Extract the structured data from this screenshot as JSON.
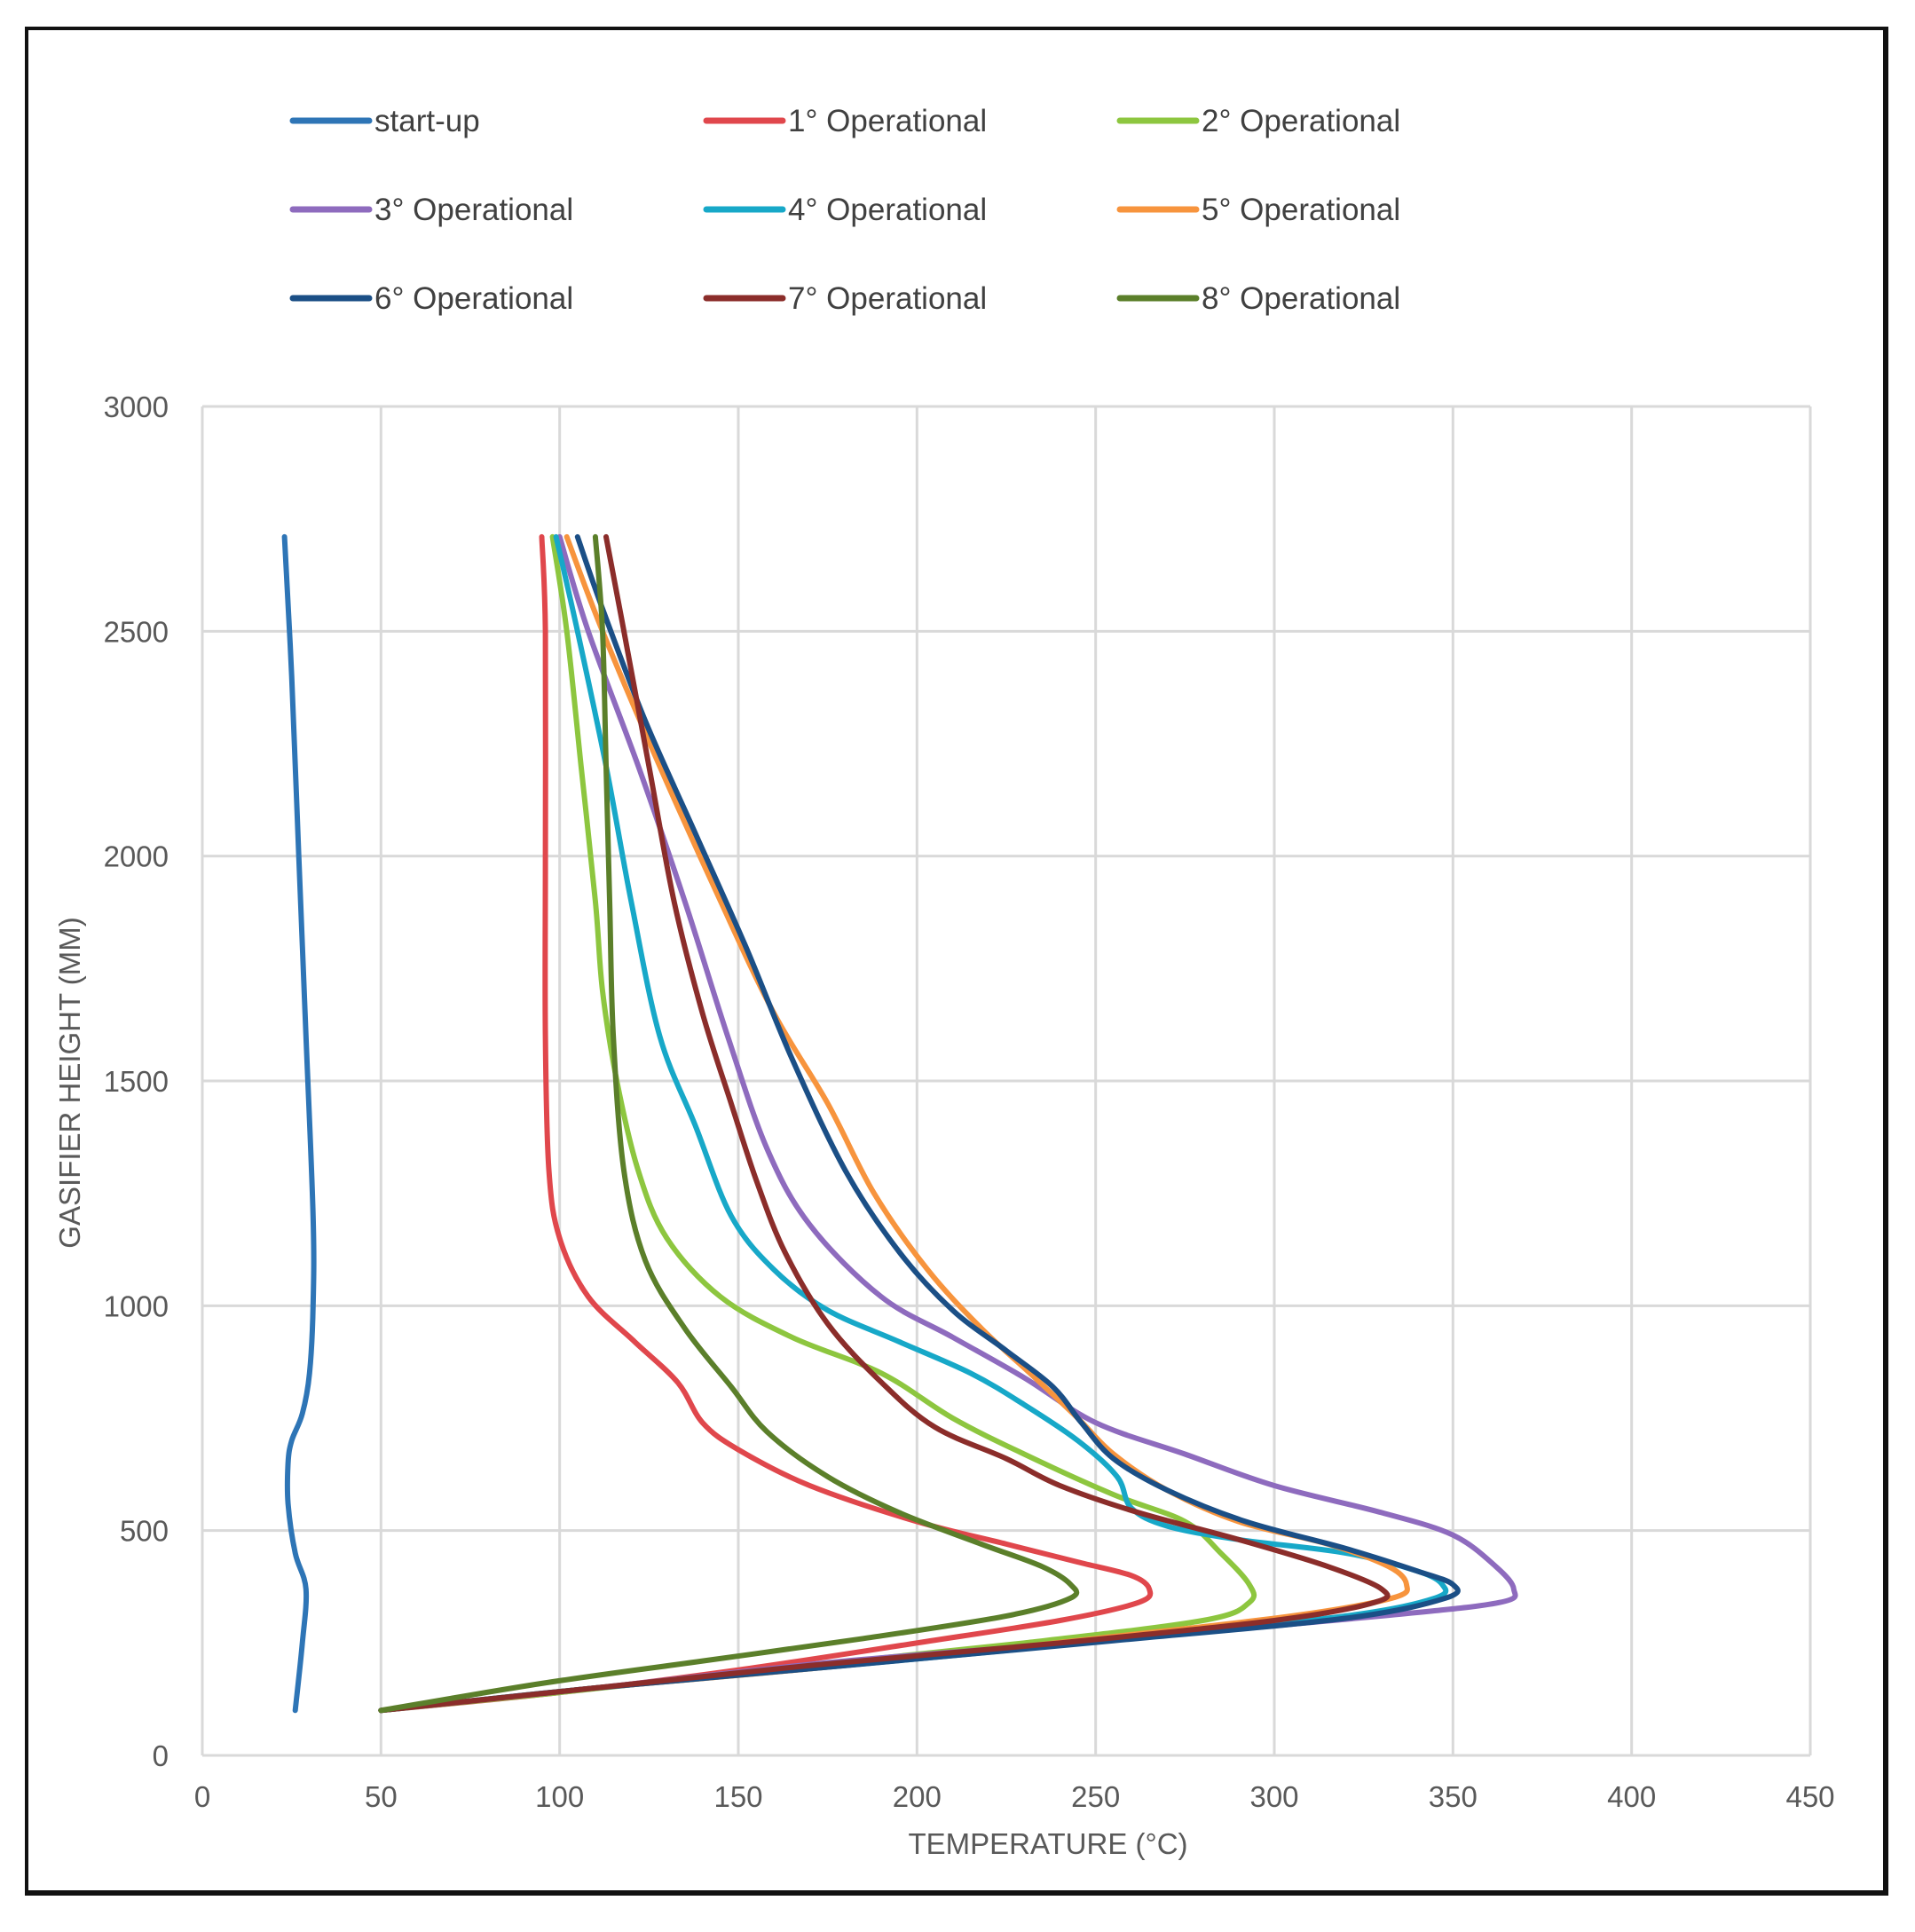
{
  "chart_data": {
    "type": "line",
    "title": "",
    "xlabel": "TEMPERATURE (°C)",
    "ylabel": "GASIFIER HEIGHT (MM)",
    "xlim": [
      0,
      450
    ],
    "ylim": [
      0,
      3000
    ],
    "xticks": [
      "0",
      "50",
      "100",
      "150",
      "200",
      "250",
      "300",
      "350",
      "400",
      "450"
    ],
    "yticks": [
      "0",
      "500",
      "1000",
      "1500",
      "2000",
      "2500",
      "3000"
    ],
    "grid": true,
    "legend_position": "top",
    "series": [
      {
        "name": "start-up",
        "color": "#2E75B6",
        "points": [
          [
            23,
            2710
          ],
          [
            25,
            2400
          ],
          [
            27,
            2000
          ],
          [
            29,
            1600
          ],
          [
            31,
            1200
          ],
          [
            31,
            1000
          ],
          [
            30,
            850
          ],
          [
            28,
            760
          ],
          [
            25,
            700
          ],
          [
            24,
            650
          ],
          [
            24,
            560
          ],
          [
            26,
            450
          ],
          [
            29,
            370
          ],
          [
            28,
            250
          ],
          [
            26,
            100
          ]
        ]
      },
      {
        "name": "1° Operational",
        "color": "#E0474C",
        "points": [
          [
            95,
            2710
          ],
          [
            96,
            2500
          ],
          [
            96,
            2000
          ],
          [
            96,
            1600
          ],
          [
            97,
            1300
          ],
          [
            100,
            1150
          ],
          [
            108,
            1020
          ],
          [
            121,
            920
          ],
          [
            133,
            830
          ],
          [
            140,
            740
          ],
          [
            150,
            680
          ],
          [
            170,
            600
          ],
          [
            200,
            520
          ],
          [
            225,
            470
          ],
          [
            245,
            430
          ],
          [
            260,
            400
          ],
          [
            265,
            370
          ],
          [
            262,
            340
          ],
          [
            240,
            300
          ],
          [
            200,
            250
          ],
          [
            150,
            190
          ],
          [
            100,
            140
          ],
          [
            50,
            100
          ]
        ]
      },
      {
        "name": "2° Operational",
        "color": "#8DC63F",
        "points": [
          [
            98,
            2710
          ],
          [
            102,
            2500
          ],
          [
            106,
            2200
          ],
          [
            110,
            1900
          ],
          [
            112,
            1700
          ],
          [
            116,
            1500
          ],
          [
            122,
            1300
          ],
          [
            130,
            1150
          ],
          [
            145,
            1020
          ],
          [
            165,
            930
          ],
          [
            190,
            850
          ],
          [
            210,
            750
          ],
          [
            230,
            670
          ],
          [
            255,
            580
          ],
          [
            275,
            520
          ],
          [
            285,
            450
          ],
          [
            293,
            380
          ],
          [
            293,
            340
          ],
          [
            280,
            300
          ],
          [
            230,
            250
          ],
          [
            170,
            200
          ],
          [
            100,
            140
          ],
          [
            50,
            100
          ]
        ]
      },
      {
        "name": "3° Operational",
        "color": "#8E6BBE",
        "points": [
          [
            100,
            2710
          ],
          [
            108,
            2500
          ],
          [
            122,
            2200
          ],
          [
            135,
            1900
          ],
          [
            147,
            1600
          ],
          [
            158,
            1350
          ],
          [
            170,
            1180
          ],
          [
            190,
            1020
          ],
          [
            210,
            930
          ],
          [
            230,
            840
          ],
          [
            250,
            740
          ],
          [
            275,
            670
          ],
          [
            300,
            600
          ],
          [
            330,
            540
          ],
          [
            350,
            490
          ],
          [
            362,
            420
          ],
          [
            367,
            370
          ],
          [
            363,
            340
          ],
          [
            330,
            310
          ],
          [
            260,
            260
          ],
          [
            180,
            210
          ],
          [
            110,
            150
          ],
          [
            50,
            100
          ]
        ]
      },
      {
        "name": "4° Operational",
        "color": "#17A8C8",
        "points": [
          [
            99,
            2710
          ],
          [
            105,
            2500
          ],
          [
            113,
            2200
          ],
          [
            120,
            1900
          ],
          [
            128,
            1600
          ],
          [
            138,
            1400
          ],
          [
            148,
            1200
          ],
          [
            160,
            1080
          ],
          [
            175,
            990
          ],
          [
            195,
            920
          ],
          [
            215,
            850
          ],
          [
            230,
            780
          ],
          [
            245,
            700
          ],
          [
            256,
            620
          ],
          [
            260,
            550
          ],
          [
            270,
            510
          ],
          [
            290,
            480
          ],
          [
            320,
            450
          ],
          [
            340,
            410
          ],
          [
            347,
            380
          ],
          [
            345,
            350
          ],
          [
            320,
            310
          ],
          [
            260,
            260
          ],
          [
            180,
            200
          ],
          [
            110,
            150
          ],
          [
            50,
            100
          ]
        ]
      },
      {
        "name": "5° Operational",
        "color": "#F7943D",
        "points": [
          [
            102,
            2710
          ],
          [
            112,
            2500
          ],
          [
            128,
            2200
          ],
          [
            145,
            1900
          ],
          [
            160,
            1650
          ],
          [
            175,
            1450
          ],
          [
            188,
            1250
          ],
          [
            203,
            1080
          ],
          [
            218,
            950
          ],
          [
            233,
            840
          ],
          [
            245,
            750
          ],
          [
            255,
            670
          ],
          [
            270,
            590
          ],
          [
            290,
            520
          ],
          [
            315,
            470
          ],
          [
            332,
            420
          ],
          [
            337,
            380
          ],
          [
            333,
            350
          ],
          [
            305,
            310
          ],
          [
            250,
            260
          ],
          [
            180,
            200
          ],
          [
            110,
            150
          ],
          [
            50,
            100
          ]
        ]
      },
      {
        "name": "6° Operational",
        "color": "#1B4F86",
        "points": [
          [
            105,
            2710
          ],
          [
            112,
            2550
          ],
          [
            124,
            2300
          ],
          [
            138,
            2050
          ],
          [
            152,
            1800
          ],
          [
            165,
            1550
          ],
          [
            180,
            1300
          ],
          [
            195,
            1120
          ],
          [
            210,
            990
          ],
          [
            225,
            900
          ],
          [
            238,
            820
          ],
          [
            246,
            740
          ],
          [
            255,
            660
          ],
          [
            270,
            590
          ],
          [
            292,
            520
          ],
          [
            320,
            460
          ],
          [
            340,
            410
          ],
          [
            350,
            380
          ],
          [
            348,
            350
          ],
          [
            320,
            305
          ],
          [
            255,
            255
          ],
          [
            180,
            200
          ],
          [
            110,
            150
          ],
          [
            50,
            100
          ]
        ]
      },
      {
        "name": "7° Operational",
        "color": "#8B2D2A",
        "points": [
          [
            113,
            2710
          ],
          [
            118,
            2500
          ],
          [
            125,
            2200
          ],
          [
            132,
            1900
          ],
          [
            140,
            1650
          ],
          [
            148,
            1450
          ],
          [
            155,
            1280
          ],
          [
            163,
            1120
          ],
          [
            175,
            960
          ],
          [
            190,
            830
          ],
          [
            205,
            730
          ],
          [
            225,
            660
          ],
          [
            240,
            600
          ],
          [
            262,
            540
          ],
          [
            290,
            480
          ],
          [
            315,
            420
          ],
          [
            330,
            370
          ],
          [
            328,
            340
          ],
          [
            300,
            300
          ],
          [
            240,
            250
          ],
          [
            170,
            200
          ],
          [
            110,
            150
          ],
          [
            50,
            100
          ]
        ]
      },
      {
        "name": "8° Operational",
        "color": "#5B7F2A",
        "points": [
          [
            110,
            2710
          ],
          [
            112,
            2500
          ],
          [
            113,
            2200
          ],
          [
            114,
            1900
          ],
          [
            115,
            1600
          ],
          [
            118,
            1300
          ],
          [
            124,
            1100
          ],
          [
            135,
            950
          ],
          [
            148,
            820
          ],
          [
            158,
            720
          ],
          [
            175,
            620
          ],
          [
            195,
            540
          ],
          [
            218,
            470
          ],
          [
            235,
            420
          ],
          [
            243,
            380
          ],
          [
            243,
            350
          ],
          [
            225,
            310
          ],
          [
            185,
            260
          ],
          [
            140,
            210
          ],
          [
            95,
            160
          ],
          [
            50,
            100
          ]
        ]
      }
    ]
  }
}
